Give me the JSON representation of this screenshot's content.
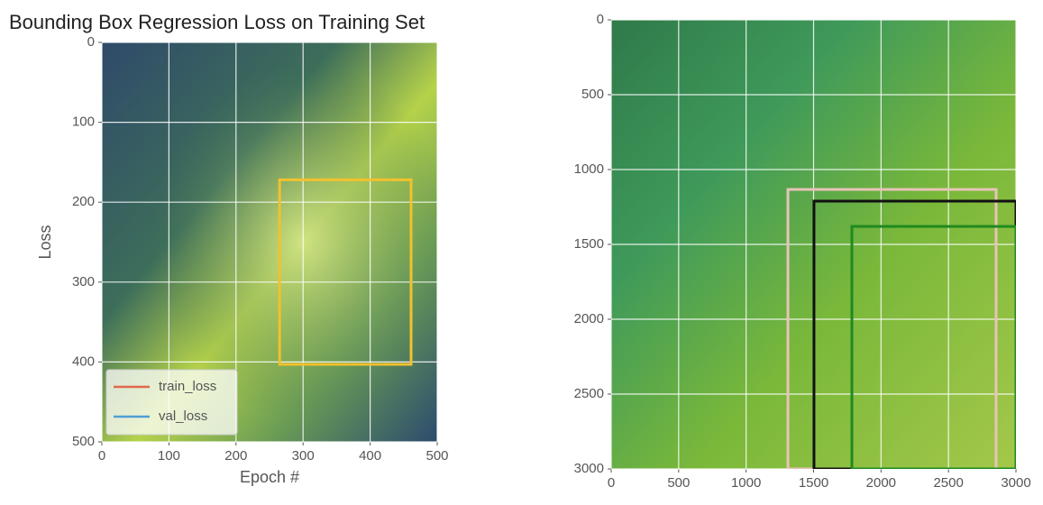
{
  "chart_data": [
    {
      "type": "image",
      "title": "Bounding Box Regression Loss on Training Set",
      "xlabel": "Epoch #",
      "ylabel": "Loss",
      "xlim": [
        0,
        500
      ],
      "ylim": [
        500,
        0
      ],
      "xticks": [
        0,
        100,
        200,
        300,
        400,
        500
      ],
      "yticks": [
        0,
        100,
        200,
        300,
        400,
        500
      ],
      "grid": true,
      "boxes": [
        {
          "color": "#f2c12e",
          "x0": 265,
          "y0": 172,
          "x1": 461,
          "y1": 403
        }
      ],
      "series": [
        {
          "name": "train_loss",
          "color": "#e2694a"
        },
        {
          "name": "val_loss",
          "color": "#4f9fd6"
        }
      ],
      "legend": "lower left"
    },
    {
      "type": "image",
      "xlim": [
        0,
        3000
      ],
      "ylim": [
        3000,
        0
      ],
      "xticks": [
        0,
        500,
        1000,
        1500,
        2000,
        2500,
        3000
      ],
      "yticks": [
        0,
        500,
        1000,
        1500,
        2000,
        2500,
        3000
      ],
      "grid": true,
      "boxes": [
        {
          "color": "#e8c4b8",
          "x0": 1310,
          "y0": 1133,
          "x1": 2853,
          "y1": 3000
        },
        {
          "color": "#111111",
          "x0": 1503,
          "y0": 1211,
          "x1": 3000,
          "y1": 3000
        },
        {
          "color": "#1f8a1f",
          "x0": 1784,
          "y0": 1380,
          "x1": 3000,
          "y1": 3000
        }
      ]
    }
  ]
}
